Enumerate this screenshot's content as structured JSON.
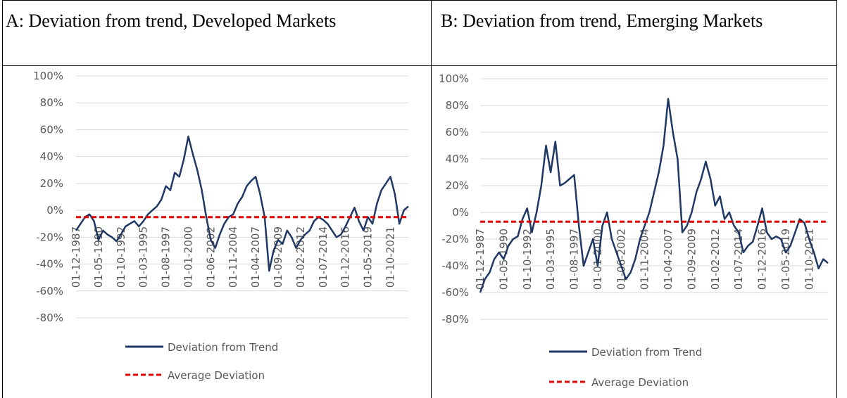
{
  "chart_data": [
    {
      "type": "line",
      "title": "A: Deviation from trend, Developed Markets",
      "categories": [
        "01-12-1987",
        null,
        null,
        null,
        null,
        "01-05-1990",
        null,
        null,
        null,
        null,
        "01-10-1992",
        null,
        null,
        null,
        null,
        "01-03-1995",
        null,
        null,
        null,
        null,
        "01-08-1997",
        null,
        null,
        null,
        null,
        "01-01-2000",
        null,
        null,
        null,
        null,
        "01-06-2002",
        null,
        null,
        null,
        null,
        "01-11-2004",
        null,
        null,
        null,
        null,
        "01-04-2007",
        null,
        null,
        null,
        null,
        "01-09-2009",
        null,
        null,
        null,
        null,
        "01-02-2012",
        null,
        null,
        null,
        null,
        "01-07-2014",
        null,
        null,
        null,
        null,
        "01-12-2016",
        null,
        null,
        null,
        null,
        "01-05-2019",
        null,
        null,
        null,
        null,
        "01-10-2021",
        null,
        null,
        null,
        null
      ],
      "series": [
        {
          "name": "Deviation from Trend",
          "color": "#1f3864",
          "values": [
            -15,
            -10,
            -5,
            -3,
            -8,
            -22,
            -15,
            -18,
            -20,
            -23,
            -18,
            -12,
            -10,
            -8,
            -12,
            -8,
            -3,
            0,
            3,
            8,
            18,
            15,
            28,
            25,
            38,
            55,
            42,
            30,
            15,
            -5,
            -22,
            -28,
            -18,
            -10,
            -5,
            -3,
            5,
            10,
            18,
            22,
            25,
            12,
            -5,
            -45,
            -30,
            -22,
            -25,
            -15,
            -20,
            -28,
            -22,
            -18,
            -15,
            -8,
            -5,
            -7,
            -10,
            -15,
            -20,
            -18,
            -12,
            -5,
            2,
            -8,
            -15,
            -5,
            -10,
            5,
            15,
            20,
            25,
            12,
            -10,
            0,
            3
          ]
        },
        {
          "name": "Average Deviation",
          "color": "#e00000",
          "dashed": true,
          "values": [
            -5,
            -5,
            -5,
            -5,
            -5,
            -5,
            -5,
            -5,
            -5,
            -5,
            -5,
            -5,
            -5,
            -5,
            -5,
            -5,
            -5,
            -5,
            -5,
            -5,
            -5,
            -5,
            -5,
            -5,
            -5,
            -5,
            -5,
            -5,
            -5,
            -5,
            -5,
            -5,
            -5,
            -5,
            -5,
            -5,
            -5,
            -5,
            -5,
            -5,
            -5,
            -5,
            -5,
            -5,
            -5,
            -5,
            -5,
            -5,
            -5,
            -5,
            -5,
            -5,
            -5,
            -5,
            -5,
            -5,
            -5,
            -5,
            -5,
            -5,
            -5,
            -5,
            -5,
            -5,
            -5,
            -5,
            -5,
            -5,
            -5,
            -5,
            -5,
            -5,
            -5,
            -5,
            -5
          ]
        }
      ],
      "ylim": [
        -80,
        100
      ],
      "yticks": [
        {
          "value": -80,
          "label": "-80%"
        },
        {
          "value": -60,
          "label": "-60%"
        },
        {
          "value": -40,
          "label": "-40%"
        },
        {
          "value": -20,
          "label": "-20%"
        },
        {
          "value": 0,
          "label": "0%"
        },
        {
          "value": 20,
          "label": "20%"
        },
        {
          "value": 40,
          "label": "40%"
        },
        {
          "value": 60,
          "label": "60%"
        },
        {
          "value": 80,
          "label": "80%"
        },
        {
          "value": 100,
          "label": "100%"
        }
      ],
      "grid": true
    },
    {
      "type": "line",
      "title": "B: Deviation from trend, Emerging Markets",
      "categories": [
        "01-12-1987",
        null,
        null,
        null,
        null,
        "01-05-1990",
        null,
        null,
        null,
        null,
        "01-10-1992",
        null,
        null,
        null,
        null,
        "01-03-1995",
        null,
        null,
        null,
        null,
        "01-08-1997",
        null,
        null,
        null,
        null,
        "01-01-2000",
        null,
        null,
        null,
        null,
        "01-06-2002",
        null,
        null,
        null,
        null,
        "01-11-2004",
        null,
        null,
        null,
        null,
        "01-04-2007",
        null,
        null,
        null,
        null,
        "01-09-2009",
        null,
        null,
        null,
        null,
        "01-02-2012",
        null,
        null,
        null,
        null,
        "01-07-2014",
        null,
        null,
        null,
        null,
        "01-12-2016",
        null,
        null,
        null,
        null,
        "01-05-2019",
        null,
        null,
        null,
        null,
        "01-10-2021",
        null,
        null,
        null,
        null
      ],
      "series": [
        {
          "name": "Deviation from Trend",
          "color": "#1f3864",
          "values": [
            -60,
            -50,
            -45,
            -35,
            -30,
            -35,
            -25,
            -20,
            -18,
            -5,
            3,
            -15,
            0,
            20,
            50,
            30,
            53,
            20,
            22,
            25,
            28,
            -10,
            -40,
            -30,
            -20,
            -40,
            -10,
            0,
            -20,
            -30,
            -40,
            -50,
            -45,
            -35,
            -20,
            -10,
            0,
            15,
            30,
            50,
            85,
            60,
            40,
            -15,
            -10,
            0,
            15,
            25,
            38,
            25,
            5,
            12,
            -5,
            0,
            -10,
            -15,
            -30,
            -25,
            -22,
            -10,
            3,
            -15,
            -20,
            -18,
            -20,
            -30,
            -25,
            -15,
            -5,
            -8,
            -20,
            -30,
            -42,
            -35,
            -38
          ]
        },
        {
          "name": "Average Deviation",
          "color": "#e00000",
          "dashed": true,
          "values": [
            -7,
            -7,
            -7,
            -7,
            -7,
            -7,
            -7,
            -7,
            -7,
            -7,
            -7,
            -7,
            -7,
            -7,
            -7,
            -7,
            -7,
            -7,
            -7,
            -7,
            -7,
            -7,
            -7,
            -7,
            -7,
            -7,
            -7,
            -7,
            -7,
            -7,
            -7,
            -7,
            -7,
            -7,
            -7,
            -7,
            -7,
            -7,
            -7,
            -7,
            -7,
            -7,
            -7,
            -7,
            -7,
            -7,
            -7,
            -7,
            -7,
            -7,
            -7,
            -7,
            -7,
            -7,
            -7,
            -7,
            -7,
            -7,
            -7,
            -7,
            -7,
            -7,
            -7,
            -7,
            -7,
            -7,
            -7,
            -7,
            -7,
            -7,
            -7,
            -7,
            -7,
            -7,
            -7
          ]
        }
      ],
      "ylim": [
        -80,
        100
      ],
      "yticks": [
        {
          "value": -80,
          "label": "-80%"
        },
        {
          "value": -60,
          "label": "-60%"
        },
        {
          "value": -40,
          "label": "-40%"
        },
        {
          "value": -20,
          "label": "-20%"
        },
        {
          "value": 0,
          "label": "0%"
        },
        {
          "value": 20,
          "label": "20%"
        },
        {
          "value": 40,
          "label": "40%"
        },
        {
          "value": 60,
          "label": "60%"
        },
        {
          "value": 80,
          "label": "80%"
        },
        {
          "value": 100,
          "label": "100%"
        }
      ],
      "grid": true
    }
  ]
}
